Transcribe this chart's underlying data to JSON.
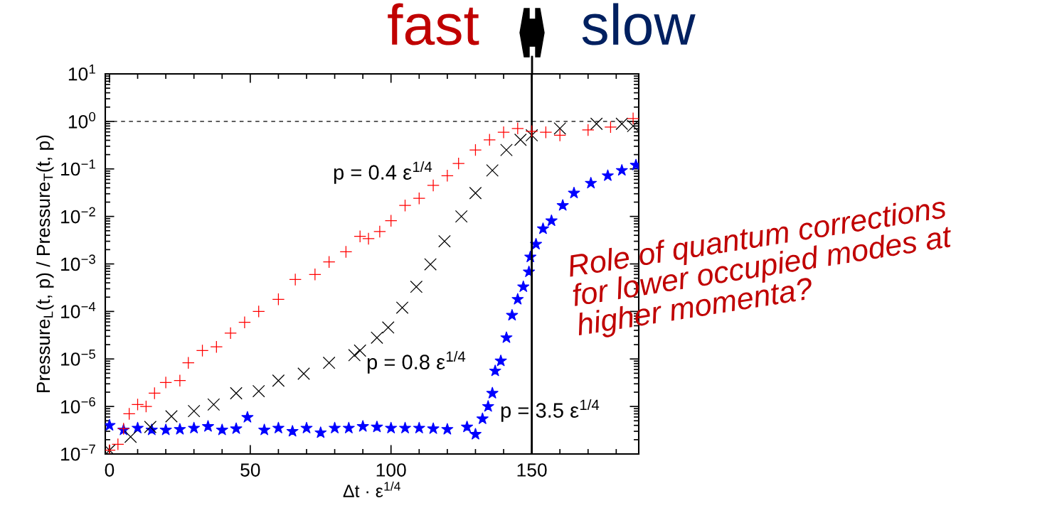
{
  "chart_data": {
    "type": "scatter",
    "xlabel": "Δt · ε$^{1/4}$",
    "ylabel": "Pressure$_{L}$(t, p) / Pressure$_{T}$(t, p)",
    "log": "y",
    "xlim": [
      -1.5,
      188
    ],
    "xticks": [
      0,
      50,
      100,
      150
    ],
    "ylim": [
      1e-07,
      10
    ],
    "yticks": [
      {
        "value": 1e-07,
        "label": "10$^{−7}$"
      },
      {
        "value": 1e-06,
        "label": "10$^{−6}$"
      },
      {
        "value": 1e-05,
        "label": "10$^{−5}$"
      },
      {
        "value": 0.0001,
        "label": "10$^{−4}$"
      },
      {
        "value": 0.001,
        "label": "10$^{−3}$"
      },
      {
        "value": 0.01,
        "label": "10$^{−2}$"
      },
      {
        "value": 0.1,
        "label": "10$^{−1}$"
      },
      {
        "value": 1,
        "label": "10$^{0}$"
      },
      {
        "value": 10,
        "label": "10$^{1}$"
      }
    ],
    "grid": false,
    "legend": false,
    "ref_lines": [
      {
        "axis": "y",
        "value": 1,
        "line_style": "dashed",
        "color": "#000000"
      },
      {
        "axis": "x",
        "value": 150,
        "line_style": "solid",
        "color": "#000000"
      }
    ],
    "annotations": [
      "p = 0.4 ε$^{1/4}$",
      "p = 0.8 ε$^{1/4}$",
      "p = 3.5 ε$^{1/4}$",
      "fast",
      "slow",
      "Role of quantum corrections\nfor lower occupied modes at\nhigher momenta?"
    ],
    "series": [
      {
        "color": "#ff0000",
        "marker": "plus",
        "x": [
          0,
          3,
          5,
          7,
          10,
          13,
          16,
          20,
          25,
          28,
          33,
          38,
          43,
          48,
          53,
          60,
          66,
          73,
          78,
          84,
          89,
          92,
          96,
          100,
          105,
          110,
          115,
          120,
          124,
          130,
          135,
          140,
          145,
          150,
          155,
          160,
          170,
          178,
          186
        ],
        "values": [
          1.2e-07,
          1.6e-07,
          3.4e-07,
          7e-07,
          1.1e-06,
          1e-06,
          1.9e-06,
          3.2e-06,
          3.5e-06,
          8.3e-06,
          1.5e-05,
          1.8e-05,
          3.5e-05,
          5.9e-05,
          0.0001,
          0.00018,
          0.00047,
          0.0006,
          0.0011,
          0.0018,
          0.0038,
          0.0034,
          0.0048,
          0.0081,
          0.017,
          0.024,
          0.045,
          0.072,
          0.13,
          0.25,
          0.41,
          0.59,
          0.71,
          0.62,
          0.59,
          0.51,
          0.66,
          0.76,
          1.15
        ]
      },
      {
        "color": "#000000",
        "marker": "cross",
        "x": [
          0,
          7.5,
          14.5,
          22,
          30,
          37,
          45,
          53,
          60,
          69,
          78,
          87,
          89,
          95,
          99,
          104,
          109,
          114,
          119,
          125,
          130,
          136,
          141,
          146,
          150,
          160,
          173,
          182,
          186
        ],
        "values": [
          1.2e-07,
          2.3e-07,
          3.7e-07,
          6.2e-07,
          8e-07,
          1.1e-06,
          1.9e-06,
          2.1e-06,
          3.5e-06,
          4.9e-06,
          8.3e-06,
          1.2e-05,
          1.5e-05,
          2.8e-05,
          4.6e-05,
          0.00012,
          0.00033,
          0.00098,
          0.003,
          0.01,
          0.031,
          0.093,
          0.25,
          0.41,
          0.51,
          0.71,
          0.89,
          0.89,
          0.8
        ]
      },
      {
        "color": "#0000ff",
        "marker": "star",
        "x": [
          0,
          5,
          10,
          15,
          20,
          25,
          30,
          35,
          40,
          45,
          49,
          55,
          60,
          65,
          70,
          75,
          80,
          85,
          90,
          95,
          100,
          105,
          110,
          115,
          120,
          127,
          130,
          132.5,
          134.5,
          136,
          137,
          139,
          141,
          143,
          145,
          147,
          149,
          149.5,
          151.5,
          154,
          157,
          161,
          165,
          171,
          177,
          182,
          187
        ],
        "values": [
          4e-07,
          3.2e-07,
          3.5e-07,
          3.2e-07,
          3.2e-07,
          3.3e-07,
          3.5e-07,
          3.8e-07,
          3.2e-07,
          3.4e-07,
          5.9e-07,
          3.2e-07,
          3.5e-07,
          3e-07,
          3.5e-07,
          2.8e-07,
          3.5e-07,
          3.5e-07,
          3.8e-07,
          3.7e-07,
          3.5e-07,
          3.5e-07,
          3.5e-07,
          3.4e-07,
          3.3e-07,
          3.7e-07,
          2.6e-07,
          5.5e-07,
          1e-06,
          1.9e-06,
          5.6e-06,
          9.1e-06,
          2.8e-05,
          8.3e-05,
          0.00018,
          0.00033,
          0.00068,
          0.0014,
          0.0026,
          0.0055,
          0.0081,
          0.017,
          0.031,
          0.05,
          0.072,
          0.093,
          0.12
        ]
      }
    ]
  }
}
